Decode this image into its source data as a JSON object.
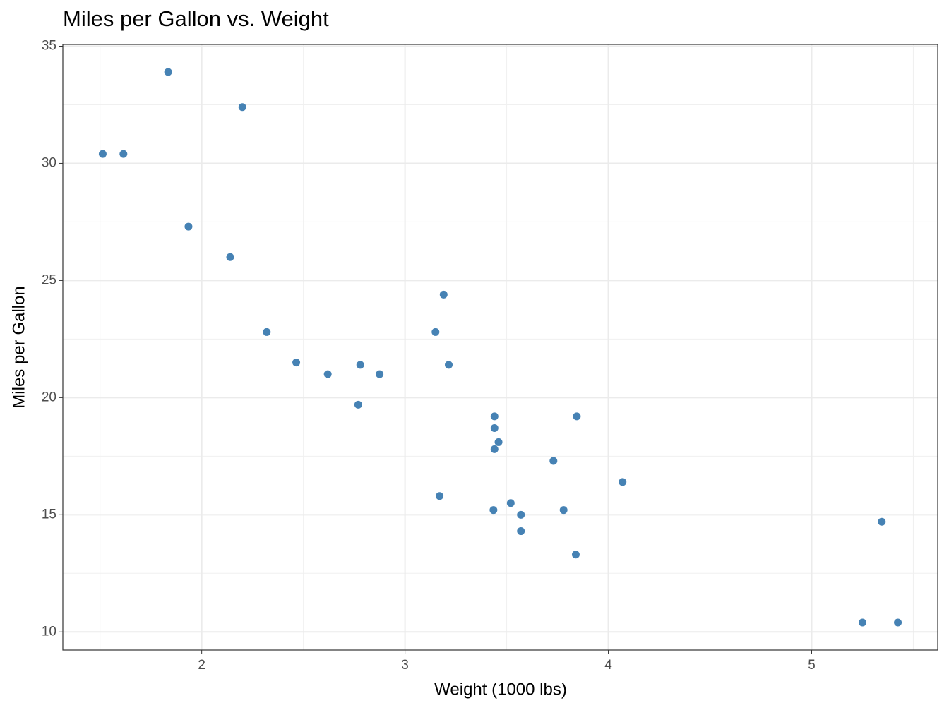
{
  "chart_data": {
    "type": "scatter",
    "title": "Miles per Gallon vs. Weight",
    "xlabel": "Weight (1000 lbs)",
    "ylabel": "Miles per Gallon",
    "x": [
      2.62,
      2.875,
      2.32,
      3.215,
      3.44,
      3.46,
      3.57,
      3.19,
      3.15,
      3.44,
      3.44,
      4.07,
      3.73,
      3.78,
      5.25,
      5.424,
      5.345,
      2.2,
      1.615,
      1.835,
      2.465,
      3.52,
      3.435,
      3.84,
      3.845,
      1.935,
      2.14,
      1.513,
      3.17,
      2.77,
      3.57,
      2.78
    ],
    "values": [
      21.0,
      21.0,
      22.8,
      21.4,
      18.7,
      18.1,
      14.3,
      24.4,
      22.8,
      19.2,
      17.8,
      16.4,
      17.3,
      15.2,
      10.4,
      10.4,
      14.7,
      32.4,
      30.4,
      33.9,
      21.5,
      15.5,
      15.2,
      13.3,
      19.2,
      27.3,
      26.0,
      30.4,
      15.8,
      19.7,
      15.0,
      21.4
    ],
    "color": "#4682b4",
    "xlim": [
      1.317,
      5.62
    ],
    "ylim": [
      9.225,
      35.075
    ],
    "xticks": [
      2,
      3,
      4,
      5
    ],
    "yticks": [
      10,
      15,
      20,
      25,
      30,
      35
    ],
    "grid": true,
    "minor_grid": true
  }
}
